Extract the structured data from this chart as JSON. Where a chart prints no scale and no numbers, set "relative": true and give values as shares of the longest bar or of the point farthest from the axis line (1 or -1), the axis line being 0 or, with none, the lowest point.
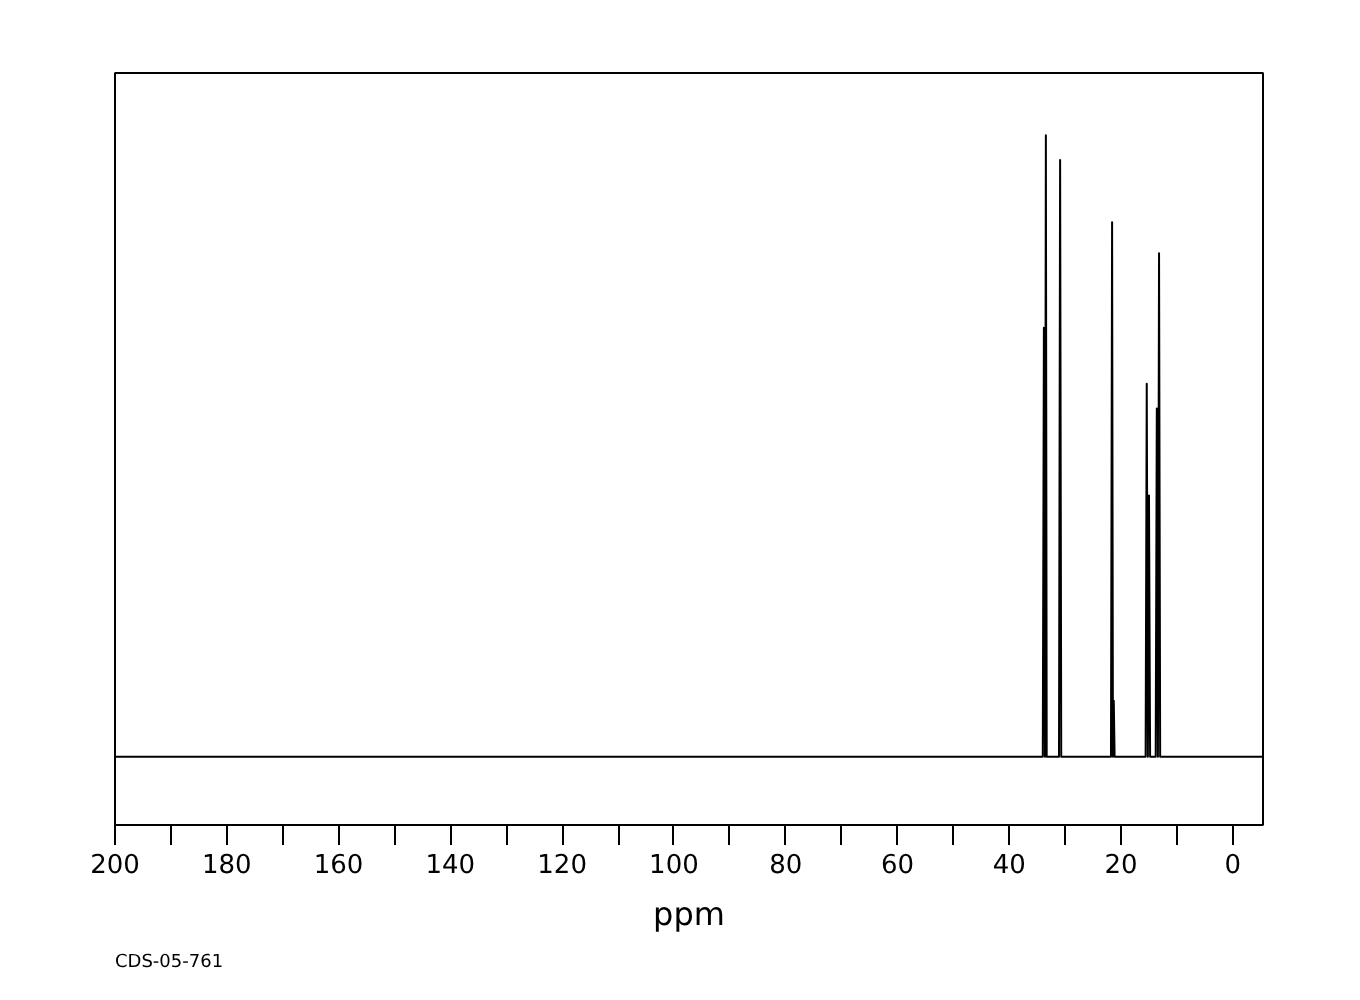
{
  "chart_data": {
    "type": "line",
    "relative": true,
    "xlabel": "ppm",
    "annotations": [
      "CDS-05-761"
    ],
    "x": [
      200,
      34.0,
      33.8,
      33.62,
      33.45,
      33.3,
      31.1,
      30.9,
      30.7,
      21.8,
      21.6,
      21.45,
      21.3,
      21.15,
      15.6,
      15.4,
      15.2,
      15.0,
      14.8,
      13.8,
      13.6,
      13.4,
      13.2,
      13.0,
      -5.4
    ],
    "series": [
      {
        "color": "#000000",
        "values": [
          0,
          0,
          0.69,
          0,
          1,
          0,
          0,
          0.96,
          0,
          0,
          0.86,
          0,
          0.09,
          0,
          0,
          0.6,
          0,
          0.42,
          0,
          0,
          0.56,
          0,
          0.81,
          0,
          0
        ]
      }
    ],
    "xlim": [
      200,
      -5.4
    ],
    "xticks": [
      200,
      180,
      160,
      140,
      120,
      100,
      80,
      60,
      40,
      20,
      0
    ],
    "grid": false,
    "marker": "none",
    "line_style": "solid"
  }
}
